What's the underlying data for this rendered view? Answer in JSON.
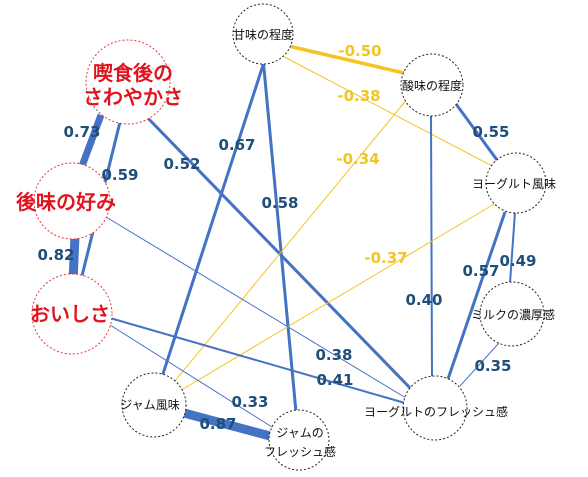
{
  "nodes": {
    "kisshoku": [
      "喫食後の",
      "さわやかさ"
    ],
    "atoaji": "後味の好み",
    "oishisa": "おいしさ",
    "amami": "甘味の程度",
    "sanmi": "酸味の程度",
    "yogurt_fumi": "ヨーグルト風味",
    "milk": "ミルクの濃厚感",
    "yogurt_fresh": "ヨーグルトのフレッシュ感",
    "jam_fumi": "ジャム風味",
    "jam_fresh": [
      "ジャムの",
      "フレッシュ感"
    ]
  },
  "edges": [
    {
      "from": "kisshoku",
      "to": "atoaji",
      "value": "0.73"
    },
    {
      "from": "atoaji",
      "to": "oishisa",
      "value": "0.82"
    },
    {
      "from": "kisshoku",
      "to": "oishisa",
      "value": "0.59"
    },
    {
      "from": "kisshoku",
      "to": "yogurt_fresh",
      "value": "0.52"
    },
    {
      "from": "amami",
      "to": "jam_fumi",
      "value": "0.67"
    },
    {
      "from": "amami",
      "to": "jam_fresh",
      "value": "0.58"
    },
    {
      "from": "amami",
      "to": "sanmi",
      "value": "-0.50"
    },
    {
      "from": "amami",
      "to": "yogurt_fumi",
      "value": "-0.38"
    },
    {
      "from": "sanmi",
      "to": "jam_fumi",
      "value": "-0.34"
    },
    {
      "from": "sanmi",
      "to": "yogurt_fumi",
      "value": "0.55"
    },
    {
      "from": "sanmi",
      "to": "yogurt_fresh",
      "value": "0.40"
    },
    {
      "from": "yogurt_fumi",
      "to": "jam_fumi",
      "value": "-0.37"
    },
    {
      "from": "yogurt_fumi",
      "to": "milk",
      "value": "0.49"
    },
    {
      "from": "yogurt_fumi",
      "to": "yogurt_fresh",
      "value": "0.57"
    },
    {
      "from": "milk",
      "to": "yogurt_fresh",
      "value": "0.35"
    },
    {
      "from": "atoaji",
      "to": "yogurt_fresh",
      "value": "0.38"
    },
    {
      "from": "oishisa",
      "to": "yogurt_fresh",
      "value": "0.41"
    },
    {
      "from": "oishisa",
      "to": "jam_fresh",
      "value": "0.33"
    },
    {
      "from": "jam_fumi",
      "to": "jam_fresh",
      "value": "0.87"
    }
  ],
  "colors": {
    "positive": "#4472c4",
    "negative": "#f2c522",
    "positive_label": "#1f4e79",
    "highlight_text": "#e0141e",
    "highlight_border": "#e03a3a"
  }
}
